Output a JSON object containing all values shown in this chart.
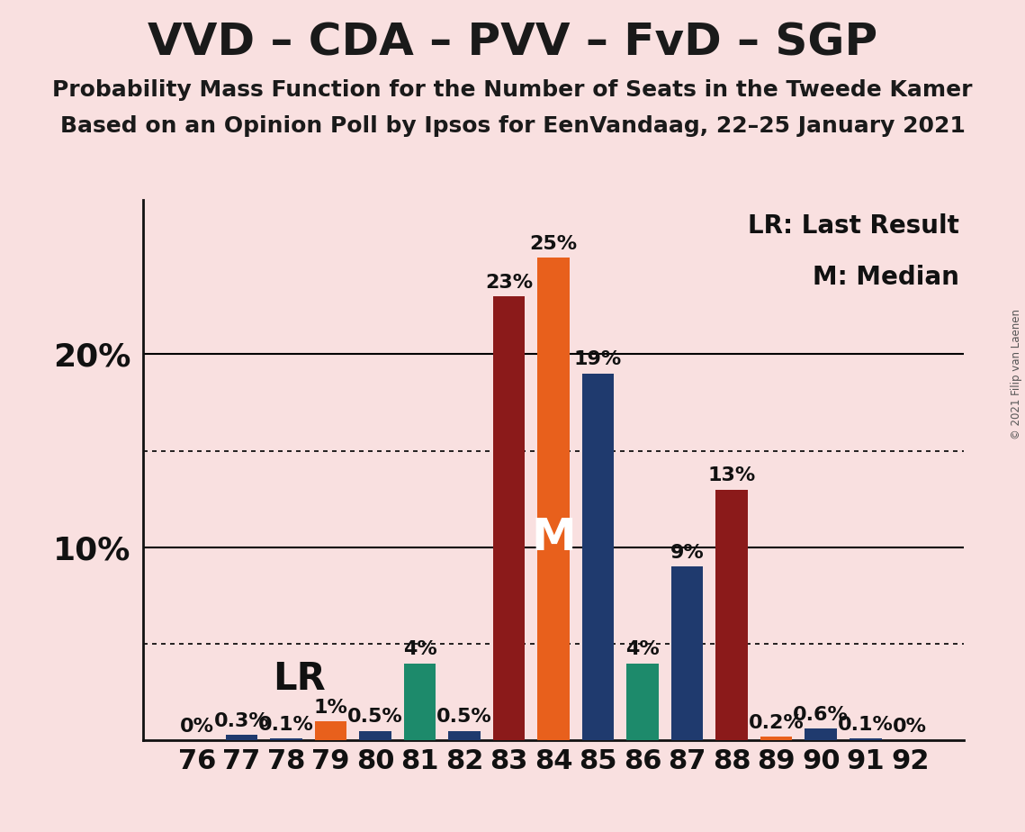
{
  "title": "VVD – CDA – PVV – FvD – SGP",
  "subtitle1": "Probability Mass Function for the Number of Seats in the Tweede Kamer",
  "subtitle2": "Based on an Opinion Poll by Ipsos for EenVandaag, 22–25 January 2021",
  "copyright": "© 2021 Filip van Laenen",
  "legend1": "LR: Last Result",
  "legend2": "M: Median",
  "background_color": "#F9E0E0",
  "seats": [
    76,
    77,
    78,
    79,
    80,
    81,
    82,
    83,
    84,
    85,
    86,
    87,
    88,
    89,
    90,
    91,
    92
  ],
  "probabilities": [
    0.0,
    0.3,
    0.1,
    1.0,
    0.5,
    4.0,
    0.5,
    23.0,
    25.0,
    19.0,
    4.0,
    9.0,
    13.0,
    0.2,
    0.6,
    0.1,
    0.0
  ],
  "bar_colors": [
    "#8B1A1A",
    "#1F3A6E",
    "#1F3A6E",
    "#E8601C",
    "#1F3A6E",
    "#1D8A6B",
    "#1F3A6E",
    "#8B1A1A",
    "#E8601C",
    "#1F3A6E",
    "#1D8A6B",
    "#1F3A6E",
    "#8B1A1A",
    "#E8601C",
    "#1F3A6E",
    "#1F3A6E",
    "#1F3A6E"
  ],
  "median_seat": 84,
  "lr_seat": 77,
  "solid_gridlines": [
    10,
    20
  ],
  "dotted_gridlines": [
    5,
    15
  ],
  "ylim": [
    0,
    28
  ],
  "title_fontsize": 36,
  "subtitle_fontsize": 18,
  "bar_label_fontsize": 16,
  "tick_label_fontsize": 22,
  "ytick_label_fontsize": 26,
  "annotation_fontsize": 20,
  "title_color": "#1a1a1a",
  "axis_color": "#111111"
}
